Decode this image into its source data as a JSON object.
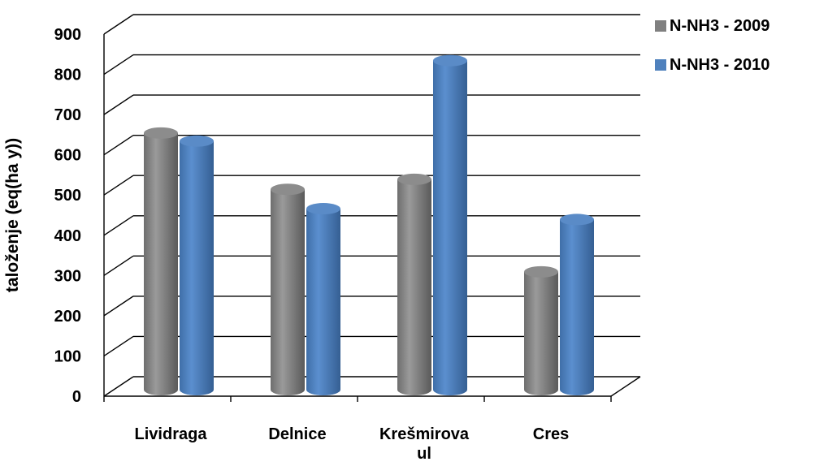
{
  "chart_data": {
    "type": "bar",
    "categories": [
      "Lividraga",
      "Delnice",
      "Krešmirova ul",
      "Cres"
    ],
    "category_lines": [
      [
        "Lividraga"
      ],
      [
        "Delnice"
      ],
      [
        "Krešmirova",
        "ul"
      ],
      [
        "Cres"
      ]
    ],
    "series": [
      {
        "name": "N-NH3 - 2009",
        "values": [
          650,
          510,
          535,
          305
        ],
        "color": "#808080"
      },
      {
        "name": "N-NH3 - 2010",
        "values": [
          630,
          462,
          830,
          435
        ],
        "color": "#4f81bd"
      }
    ],
    "ylabel": "taloženje (eq(ha y))",
    "xlabel": "",
    "title": "",
    "ylim": [
      0,
      900
    ],
    "yticks": [
      0,
      100,
      200,
      300,
      400,
      500,
      600,
      700,
      800,
      900
    ],
    "grid": true,
    "legend_position": "top-right",
    "style": "3d-cylinder"
  }
}
